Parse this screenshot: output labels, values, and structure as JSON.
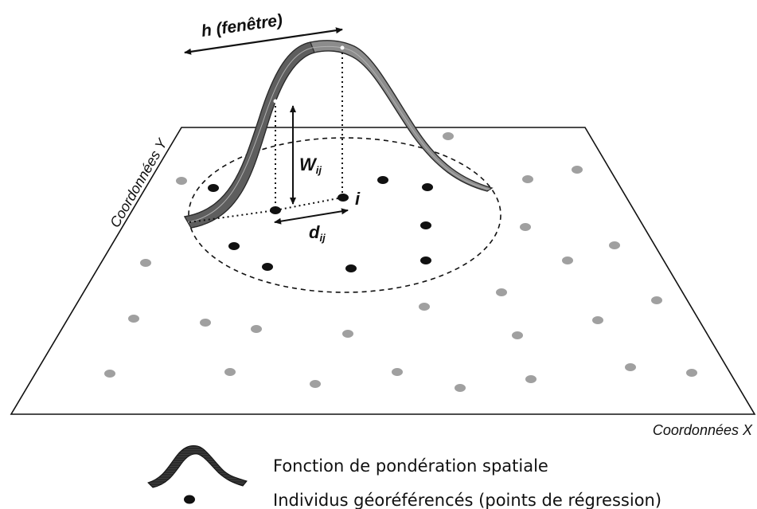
{
  "labels": {
    "h": "h (fenêtre)",
    "w_main": "W",
    "w_sub": "ij",
    "d_main": "d",
    "d_sub": "ij",
    "i": "i",
    "coord_x": "Coordonnées X",
    "coord_y": "Coordonnées Y"
  },
  "legend": {
    "kernel": "Fonction de pondération spatiale",
    "points": "Individus géoréférencés (points de régression)"
  },
  "colors": {
    "kernel_fill": "#6e6e6e",
    "kernel_edge": "#2a2a2a",
    "dot_black": "#111111",
    "dot_gray": "#a0a0a0"
  }
}
